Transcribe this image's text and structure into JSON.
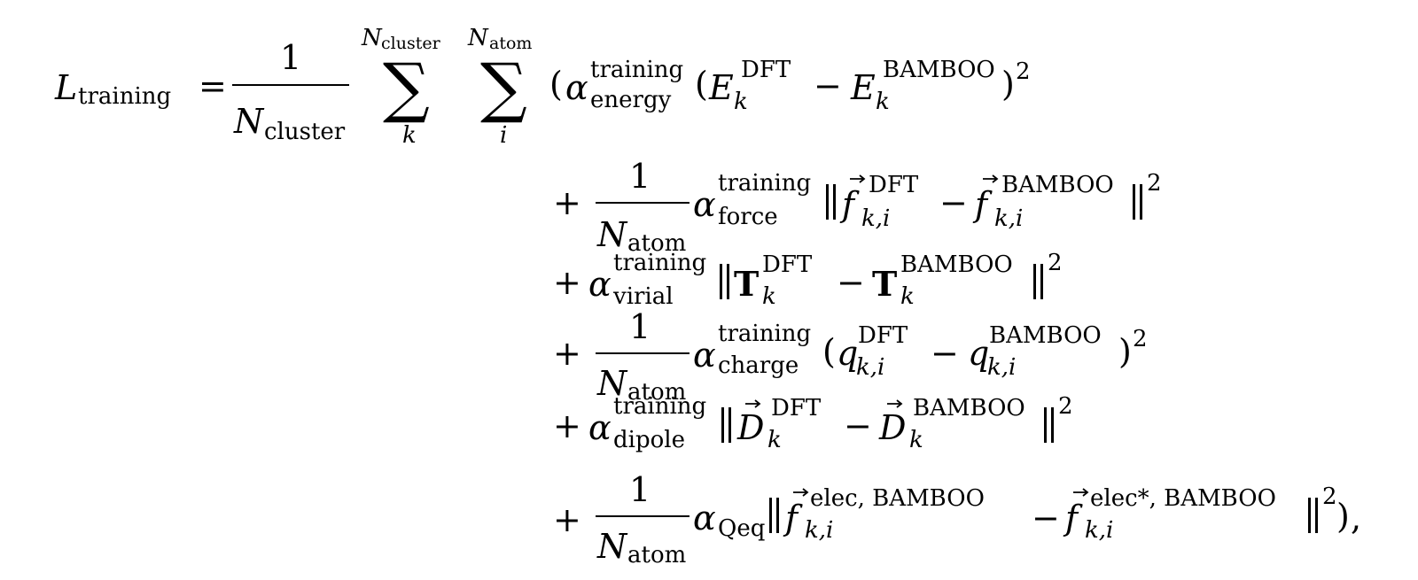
{
  "symbols": {
    "L": "L",
    "training": "training",
    "equals": "=",
    "one": "1",
    "N": "N",
    "cluster": "cluster",
    "atom": "atom",
    "sum": "∑",
    "k": "k",
    "i": "i",
    "ki": "k,i",
    "alpha": "α",
    "energy": "energy",
    "force": "force",
    "virial": "virial",
    "charge": "charge",
    "dipole": "dipole",
    "Qeq": "Qeq",
    "E": "E",
    "f": "f",
    "T": "T",
    "q": "q",
    "D": "D",
    "DFT": "DFT",
    "BAMBOO": "BAMBOO",
    "elec_bamboo": "elec, BAMBOO",
    "elecstar_bamboo": "elec*, BAMBOO",
    "plus": "+",
    "minus": "−",
    "lparen": "(",
    "rparen": ")",
    "norm": "||",
    "sq": "2",
    "end_norm": "||",
    "end_tail": ")",
    "comma": ","
  }
}
